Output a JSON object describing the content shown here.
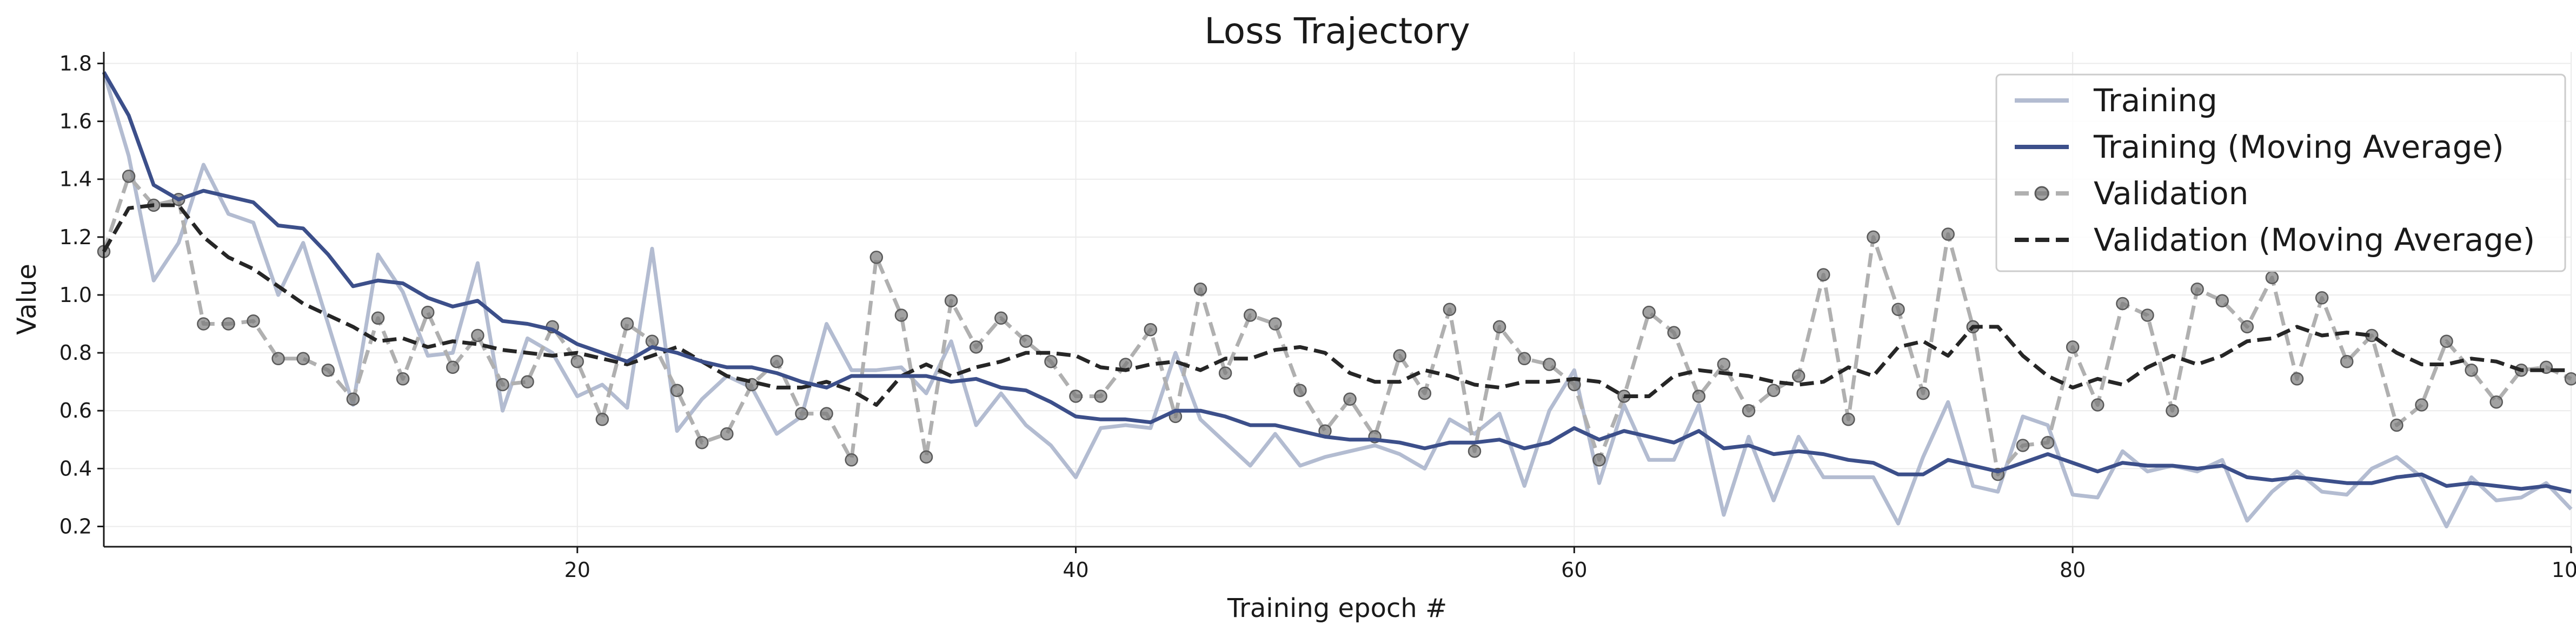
{
  "chart_data": {
    "type": "line",
    "title": "Loss Trajectory",
    "xlabel": "Training epoch #",
    "ylabel": "Value",
    "xlim": [
      1,
      100
    ],
    "ylim": [
      0.13,
      1.84
    ],
    "xticks": [
      20,
      40,
      60,
      80,
      100
    ],
    "yticks": [
      0.2,
      0.4,
      0.6,
      0.8,
      1.0,
      1.2,
      1.4,
      1.6,
      1.8
    ],
    "grid": true,
    "legend_position": "top-right",
    "x": [
      1,
      2,
      3,
      4,
      5,
      6,
      7,
      8,
      9,
      10,
      11,
      12,
      13,
      14,
      15,
      16,
      17,
      18,
      19,
      20,
      21,
      22,
      23,
      24,
      25,
      26,
      27,
      28,
      29,
      30,
      31,
      32,
      33,
      34,
      35,
      36,
      37,
      38,
      39,
      40,
      41,
      42,
      43,
      44,
      45,
      46,
      47,
      48,
      49,
      50,
      51,
      52,
      53,
      54,
      55,
      56,
      57,
      58,
      59,
      60,
      61,
      62,
      63,
      64,
      65,
      66,
      67,
      68,
      69,
      70,
      71,
      72,
      73,
      74,
      75,
      76,
      77,
      78,
      79,
      80,
      81,
      82,
      83,
      84,
      85,
      86,
      87,
      88,
      89,
      90,
      91,
      92,
      93,
      94,
      95,
      96,
      97,
      98,
      99,
      100
    ],
    "series": [
      {
        "name": "Training",
        "color": "#b3bcd1",
        "style": "solid",
        "values": [
          1.77,
          1.48,
          1.05,
          1.18,
          1.45,
          1.28,
          1.25,
          1.0,
          1.18,
          0.9,
          0.62,
          1.14,
          1.01,
          0.79,
          0.8,
          1.11,
          0.6,
          0.85,
          0.8,
          0.65,
          0.69,
          0.61,
          1.16,
          0.53,
          0.64,
          0.72,
          0.68,
          0.52,
          0.58,
          0.9,
          0.74,
          0.74,
          0.75,
          0.66,
          0.84,
          0.55,
          0.66,
          0.55,
          0.48,
          0.37,
          0.54,
          0.55,
          0.54,
          0.8,
          0.57,
          0.49,
          0.41,
          0.52,
          0.41,
          0.44,
          0.46,
          0.48,
          0.45,
          0.4,
          0.57,
          0.52,
          0.59,
          0.34,
          0.6,
          0.74,
          0.35,
          0.62,
          0.43,
          0.43,
          0.62,
          0.24,
          0.51,
          0.29,
          0.51,
          0.37,
          0.37,
          0.37,
          0.21,
          0.44,
          0.63,
          0.34,
          0.32,
          0.58,
          0.55,
          0.31,
          0.3,
          0.46,
          0.39,
          0.41,
          0.39,
          0.43,
          0.22,
          0.32,
          0.39,
          0.32,
          0.31,
          0.4,
          0.44,
          0.37,
          0.2,
          0.37,
          0.29,
          0.3,
          0.35,
          0.26
        ]
      },
      {
        "name": "Training (Moving Average)",
        "color": "#3c4f8a",
        "style": "solid",
        "values": [
          1.77,
          1.62,
          1.38,
          1.33,
          1.36,
          1.34,
          1.32,
          1.24,
          1.23,
          1.14,
          1.03,
          1.05,
          1.04,
          0.99,
          0.96,
          0.98,
          0.91,
          0.9,
          0.88,
          0.83,
          0.8,
          0.77,
          0.82,
          0.8,
          0.77,
          0.75,
          0.75,
          0.73,
          0.7,
          0.68,
          0.72,
          0.72,
          0.72,
          0.72,
          0.7,
          0.71,
          0.68,
          0.67,
          0.63,
          0.58,
          0.57,
          0.57,
          0.56,
          0.6,
          0.6,
          0.58,
          0.55,
          0.55,
          0.53,
          0.51,
          0.5,
          0.5,
          0.49,
          0.47,
          0.49,
          0.49,
          0.5,
          0.47,
          0.49,
          0.54,
          0.5,
          0.53,
          0.51,
          0.49,
          0.53,
          0.47,
          0.48,
          0.45,
          0.46,
          0.45,
          0.43,
          0.42,
          0.38,
          0.38,
          0.43,
          0.41,
          0.39,
          0.42,
          0.45,
          0.42,
          0.39,
          0.42,
          0.41,
          0.41,
          0.4,
          0.41,
          0.37,
          0.36,
          0.37,
          0.36,
          0.35,
          0.35,
          0.37,
          0.38,
          0.34,
          0.35,
          0.34,
          0.33,
          0.34,
          0.32
        ]
      },
      {
        "name": "Validation",
        "color": "#b0b0b0",
        "marker_color": "#7a7a7a",
        "style": "dashed",
        "markers": true,
        "values": [
          1.15,
          1.41,
          1.31,
          1.33,
          0.9,
          0.9,
          0.91,
          0.78,
          0.78,
          0.74,
          0.64,
          0.92,
          0.71,
          0.94,
          0.75,
          0.86,
          0.69,
          0.7,
          0.89,
          0.77,
          0.57,
          0.9,
          0.84,
          0.67,
          0.49,
          0.52,
          0.69,
          0.77,
          0.59,
          0.59,
          0.43,
          1.13,
          0.93,
          0.44,
          0.98,
          0.82,
          0.92,
          0.84,
          0.77,
          0.65,
          0.65,
          0.76,
          0.88,
          0.58,
          1.02,
          0.73,
          0.93,
          0.9,
          0.67,
          0.53,
          0.64,
          0.51,
          0.79,
          0.66,
          0.95,
          0.46,
          0.89,
          0.78,
          0.76,
          0.69,
          0.43,
          0.65,
          0.94,
          0.87,
          0.65,
          0.76,
          0.6,
          0.67,
          0.72,
          1.07,
          0.57,
          1.2,
          0.95,
          0.66,
          1.21,
          0.89,
          0.38,
          0.48,
          0.49,
          0.82,
          0.62,
          0.97,
          0.93,
          0.6,
          1.02,
          0.98,
          0.89,
          1.06,
          0.71,
          0.99,
          0.77,
          0.86,
          0.55,
          0.62,
          0.84,
          0.74,
          0.63,
          0.74,
          0.75,
          0.71
        ]
      },
      {
        "name": "Validation (Moving Average)",
        "color": "#262626",
        "style": "dashed",
        "values": [
          1.15,
          1.3,
          1.31,
          1.31,
          1.2,
          1.13,
          1.09,
          1.03,
          0.97,
          0.93,
          0.89,
          0.84,
          0.85,
          0.82,
          0.84,
          0.83,
          0.81,
          0.8,
          0.79,
          0.8,
          0.78,
          0.76,
          0.79,
          0.82,
          0.77,
          0.72,
          0.7,
          0.68,
          0.68,
          0.7,
          0.67,
          0.62,
          0.72,
          0.76,
          0.72,
          0.75,
          0.77,
          0.8,
          0.8,
          0.79,
          0.75,
          0.74,
          0.76,
          0.77,
          0.74,
          0.78,
          0.78,
          0.81,
          0.82,
          0.8,
          0.73,
          0.7,
          0.7,
          0.74,
          0.72,
          0.69,
          0.68,
          0.7,
          0.7,
          0.71,
          0.7,
          0.65,
          0.65,
          0.72,
          0.74,
          0.73,
          0.72,
          0.7,
          0.69,
          0.7,
          0.75,
          0.72,
          0.82,
          0.84,
          0.79,
          0.89,
          0.89,
          0.79,
          0.72,
          0.68,
          0.71,
          0.69,
          0.75,
          0.79,
          0.76,
          0.79,
          0.84,
          0.85,
          0.89,
          0.86,
          0.87,
          0.86,
          0.8,
          0.76,
          0.76,
          0.78,
          0.77,
          0.74,
          0.74,
          0.74
        ]
      }
    ]
  }
}
